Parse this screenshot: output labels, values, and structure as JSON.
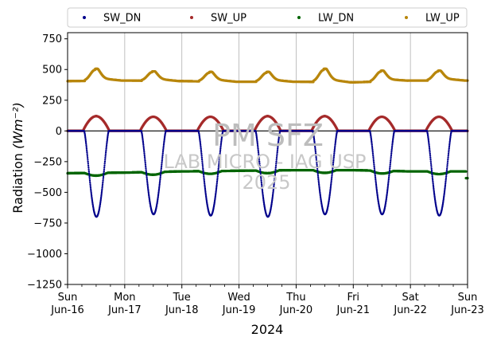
{
  "chart_data": {
    "type": "scatter",
    "xlabel": "2024",
    "ylabel": "Radiation",
    "ylabel_unit": "(Wm⁻²)",
    "ylim": [
      -1250,
      800
    ],
    "yticks": [
      -1250,
      -1000,
      -750,
      -500,
      -250,
      0,
      250,
      500,
      750
    ],
    "xlim_days": [
      0,
      7
    ],
    "xticks": [
      {
        "day": 0,
        "weekday": "Sun",
        "date": "Jun-16"
      },
      {
        "day": 1,
        "weekday": "Mon",
        "date": "Jun-17"
      },
      {
        "day": 2,
        "weekday": "Tue",
        "date": "Jun-18"
      },
      {
        "day": 3,
        "weekday": "Wed",
        "date": "Jun-19"
      },
      {
        "day": 4,
        "weekday": "Thu",
        "date": "Jun-20"
      },
      {
        "day": 5,
        "weekday": "Fri",
        "date": "Jun-21"
      },
      {
        "day": 6,
        "weekday": "Sat",
        "date": "Jun-22"
      },
      {
        "day": 7,
        "weekday": "Sun",
        "date": "Jun-23"
      }
    ],
    "grid": "vertical",
    "zero_line": true,
    "legend_position": "top",
    "series": [
      {
        "name": "SW_DN",
        "color": "#00008b",
        "night": 0,
        "daily_min": [
          -700,
          -680,
          -690,
          -700,
          -680,
          -680,
          -690
        ],
        "noon_offset": 0.5
      },
      {
        "name": "SW_UP",
        "color": "#a52a2a",
        "night": 0,
        "daily_peak": [
          120,
          115,
          115,
          120,
          120,
          115,
          115
        ]
      },
      {
        "name": "LW_DN",
        "color": "#006400",
        "daily_base": [
          -345,
          -340,
          -330,
          -325,
          -320,
          -320,
          -330
        ],
        "end_value": -385
      },
      {
        "name": "LW_UP",
        "color": "#b8860b",
        "daily_peak": [
          505,
          485,
          480,
          480,
          505,
          490,
          490
        ],
        "daily_base": [
          405,
          410,
          405,
          400,
          400,
          395,
          410
        ]
      }
    ]
  },
  "watermark": {
    "line1": "PM SFZ",
    "line2": "LAB MICRO - IAG USP",
    "line3": "2025"
  }
}
